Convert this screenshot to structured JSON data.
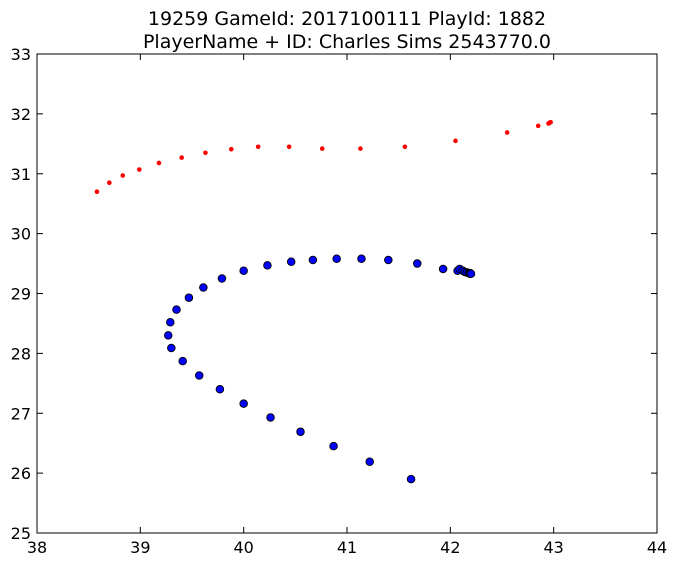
{
  "chart_data": {
    "type": "scatter",
    "title": "19259 GameId: 2017100111 PlayId: 1882",
    "subtitle": "PlayerName + ID: Charles Sims 2543770.0",
    "xlabel": "",
    "ylabel": "",
    "xlim": [
      38,
      44
    ],
    "ylim": [
      25,
      33
    ],
    "x_ticks": [
      "38",
      "39",
      "40",
      "41",
      "42",
      "43",
      "44"
    ],
    "y_ticks": [
      "25",
      "26",
      "27",
      "28",
      "29",
      "30",
      "31",
      "32",
      "33"
    ],
    "grid": false,
    "series": [
      {
        "marker": "small-dot",
        "color": "#ff0000",
        "points": [
          [
            38.58,
            30.7
          ],
          [
            38.7,
            30.85
          ],
          [
            38.83,
            30.97
          ],
          [
            38.99,
            31.07
          ],
          [
            39.18,
            31.18
          ],
          [
            39.4,
            31.27
          ],
          [
            39.63,
            31.35
          ],
          [
            39.88,
            31.41
          ],
          [
            40.14,
            31.45
          ],
          [
            40.44,
            31.45
          ],
          [
            40.76,
            31.42
          ],
          [
            41.13,
            31.42
          ],
          [
            41.56,
            31.45
          ],
          [
            42.05,
            31.55
          ],
          [
            42.55,
            31.69
          ],
          [
            42.85,
            31.8
          ],
          [
            42.95,
            31.84
          ],
          [
            42.96,
            31.85
          ],
          [
            42.97,
            31.86
          ],
          [
            42.97,
            31.86
          ]
        ]
      },
      {
        "marker": "circle",
        "color": "#0000ff",
        "points": [
          [
            41.62,
            25.9
          ],
          [
            41.22,
            26.19
          ],
          [
            40.87,
            26.45
          ],
          [
            40.55,
            26.69
          ],
          [
            40.26,
            26.93
          ],
          [
            40.0,
            27.16
          ],
          [
            39.77,
            27.4
          ],
          [
            39.57,
            27.63
          ],
          [
            39.41,
            27.87
          ],
          [
            39.3,
            28.09
          ],
          [
            39.27,
            28.3
          ],
          [
            39.29,
            28.52
          ],
          [
            39.35,
            28.73
          ],
          [
            39.47,
            28.93
          ],
          [
            39.61,
            29.1
          ],
          [
            39.79,
            29.25
          ],
          [
            40.0,
            29.38
          ],
          [
            40.23,
            29.47
          ],
          [
            40.46,
            29.53
          ],
          [
            40.67,
            29.56
          ],
          [
            40.9,
            29.58
          ],
          [
            41.14,
            29.58
          ],
          [
            41.4,
            29.56
          ],
          [
            41.68,
            29.5
          ],
          [
            41.93,
            29.41
          ],
          [
            42.07,
            29.38
          ],
          [
            42.09,
            29.41
          ],
          [
            42.12,
            29.38
          ],
          [
            42.14,
            29.36
          ],
          [
            42.16,
            29.35
          ],
          [
            42.18,
            29.34
          ],
          [
            42.19,
            29.34
          ],
          [
            42.19,
            29.33
          ],
          [
            42.2,
            29.33
          ]
        ]
      }
    ]
  }
}
